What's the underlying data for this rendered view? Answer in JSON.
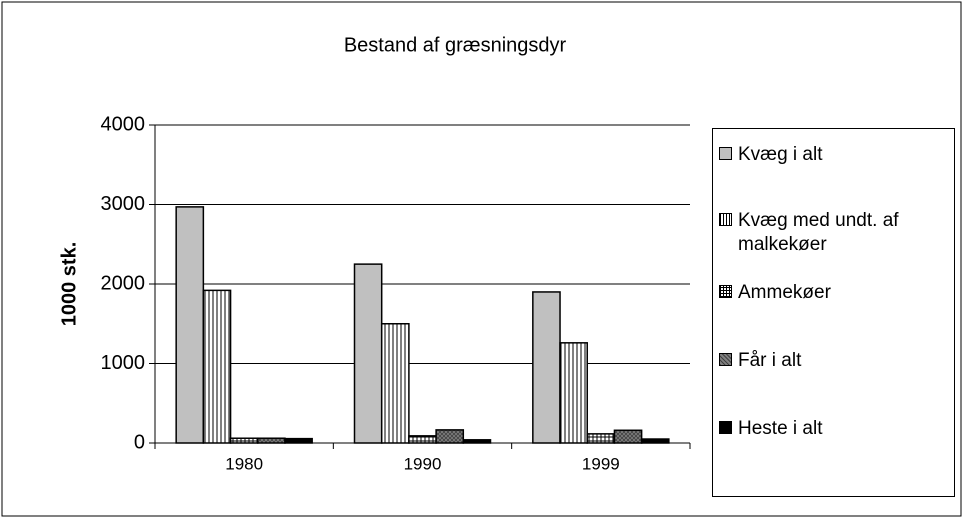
{
  "chart_data": {
    "type": "bar",
    "title": "Bestand af græsningsdyr",
    "y_label": "1000 stk.",
    "categories": [
      "1980",
      "1990",
      "1999"
    ],
    "series": [
      {
        "name": "Kvæg i alt",
        "color": "#c0c0c0",
        "pattern": "solid",
        "values": [
          2970,
          2250,
          1900
        ]
      },
      {
        "name": "Kvæg med undt. af malkekøer",
        "color": "#ffffff",
        "pattern": "vertical",
        "values": [
          1920,
          1500,
          1260
        ]
      },
      {
        "name": "Ammekøer",
        "color": "#ffffff",
        "pattern": "grid",
        "values": [
          60,
          90,
          115
        ]
      },
      {
        "name": "Får i alt",
        "color": "#808080",
        "pattern": "crosshatch",
        "values": [
          60,
          165,
          160
        ]
      },
      {
        "name": "Heste i alt",
        "color": "#000000",
        "pattern": "solid",
        "values": [
          55,
          40,
          50
        ]
      }
    ],
    "ylim": [
      0,
      4000
    ],
    "yticks": [
      0,
      1000,
      2000,
      3000,
      4000
    ],
    "grid": true,
    "legend": "right"
  }
}
